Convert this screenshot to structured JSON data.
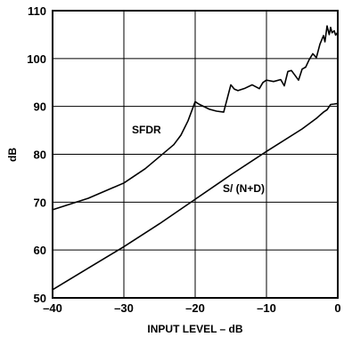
{
  "chart_data": {
    "type": "line",
    "xlabel": "INPUT LEVEL – dB",
    "ylabel": "dB",
    "xlim": [
      -40,
      0
    ],
    "ylim": [
      50,
      110
    ],
    "x_ticks": [
      "–40",
      "–30",
      "–20",
      "–10",
      "0"
    ],
    "y_ticks": [
      "50",
      "60",
      "70",
      "80",
      "90",
      "100",
      "110"
    ],
    "grid": true,
    "series": [
      {
        "name": "SFDR",
        "label": "SFDR",
        "x": [
          -40,
          -35,
          -30,
          -27,
          -25,
          -23,
          -22,
          -21,
          -20,
          -19.5,
          -18,
          -17,
          -16,
          -15,
          -14.5,
          -14,
          -13,
          -12,
          -11,
          -10.5,
          -10,
          -9,
          -8,
          -7.5,
          -7,
          -6.5,
          -6,
          -5.5,
          -5,
          -4.5,
          -4,
          -3.5,
          -3,
          -2.5,
          -2,
          -1.8,
          -1.5,
          -1.2,
          -1,
          -0.8,
          -0.5,
          -0.3,
          0
        ],
        "y": [
          68.4,
          70.8,
          74,
          77,
          79.5,
          82,
          84,
          87,
          91,
          90.5,
          89.4,
          89,
          88.8,
          94.5,
          93.6,
          93.3,
          93.8,
          94.5,
          93.7,
          95,
          95.5,
          95.2,
          95.6,
          94.3,
          97.3,
          97.5,
          96.5,
          95.5,
          97.8,
          98.2,
          99.8,
          101,
          100.2,
          103,
          104.8,
          103.5,
          106.8,
          105,
          106.5,
          105.4,
          105.8,
          104.9,
          105.5
        ]
      },
      {
        "name": "S/(N+D)",
        "label": "S/ (N+D)",
        "x": [
          -40,
          -35,
          -30,
          -25,
          -20,
          -15,
          -10,
          -5,
          -3,
          -2,
          -1.5,
          -1,
          -0.5,
          0
        ],
        "y": [
          51.7,
          56.2,
          60.7,
          65.5,
          70.6,
          75.7,
          80.6,
          85.3,
          87.5,
          88.8,
          89.3,
          90.4,
          90.5,
          90.6
        ]
      }
    ]
  }
}
